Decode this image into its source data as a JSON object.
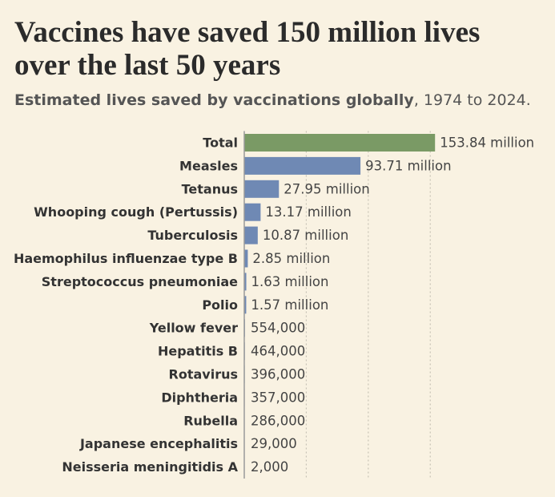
{
  "chart_data": {
    "type": "hbar",
    "title": [
      "Vaccines have saved 150 million lives",
      "over the last 50 years"
    ],
    "subtitle": {
      "bold": "Estimated lives saved by vaccinations globally",
      "rest": ", 1974 to 2024."
    },
    "categories": [
      "Total",
      "Measles",
      "Tetanus",
      "Whooping cough (Pertussis)",
      "Tuberculosis",
      "Haemophilus influenzae type B",
      "Streptococcus pneumoniae",
      "Polio",
      "Yellow fever",
      "Hepatitis B",
      "Rotavirus",
      "Diphtheria",
      "Rubella",
      "Japanese encephalitis",
      "Neisseria meningitidis A"
    ],
    "values": [
      153840000,
      93710000,
      27950000,
      13170000,
      10870000,
      2850000,
      1630000,
      1570000,
      554000,
      464000,
      396000,
      357000,
      286000,
      29000,
      2000
    ],
    "value_labels": [
      "153.84 million",
      "93.71 million",
      "27.95 million",
      "13.17 million",
      "10.87 million",
      "2.85 million",
      "1.63 million",
      "1.57 million",
      "554,000",
      "464,000",
      "396,000",
      "357,000",
      "286,000",
      "29,000",
      "2,000"
    ],
    "colors": [
      "#7a9a65",
      "#6f89b4",
      "#6f89b4",
      "#6f89b4",
      "#6f89b4",
      "#6f89b4",
      "#6f89b4",
      "#6f89b4",
      "#6f89b4",
      "#6f89b4",
      "#6f89b4",
      "#6f89b4",
      "#6f89b4",
      "#6f89b4",
      "#6f89b4"
    ],
    "xlim": [
      0,
      155000000
    ],
    "xticks": [
      50000000,
      100000000,
      150000000
    ],
    "grid": true
  }
}
